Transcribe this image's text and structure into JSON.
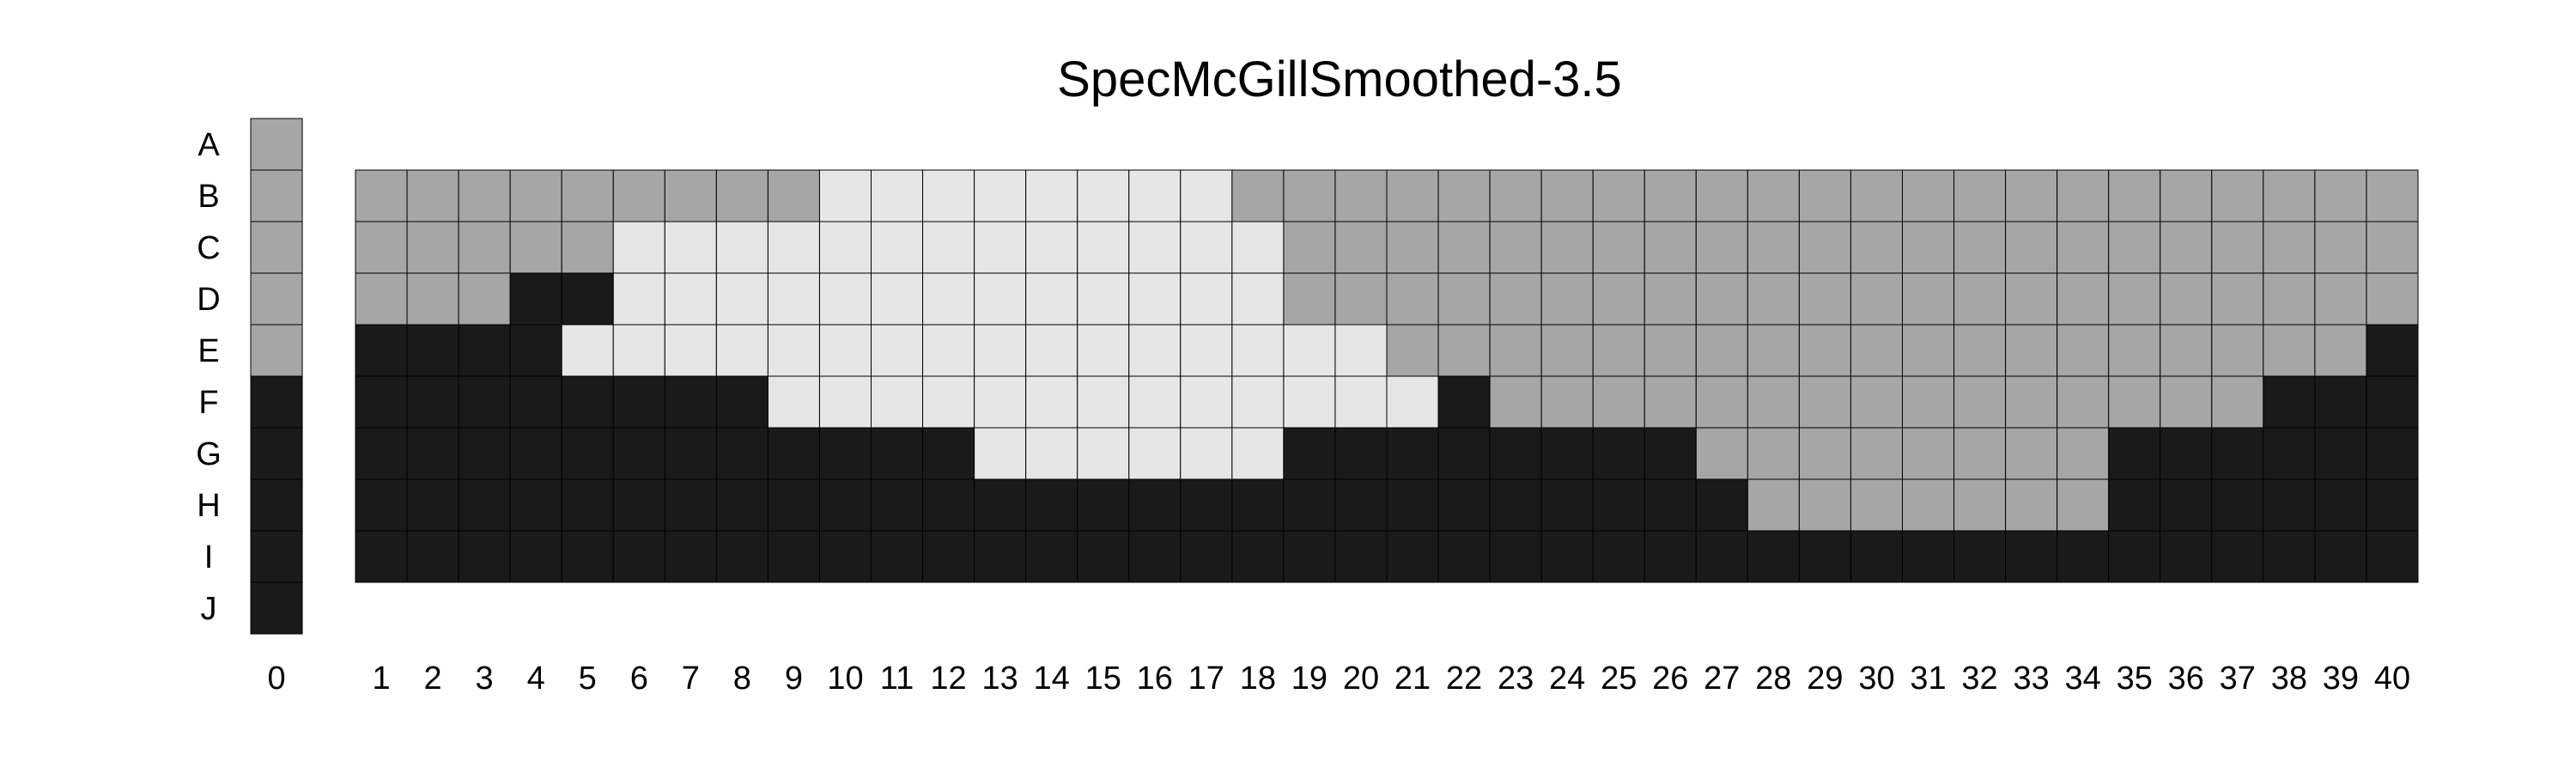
{
  "chart_data": {
    "type": "heatmap",
    "title": "SpecMcGillSmoothed-3.5",
    "xlabel": "",
    "ylabel": "",
    "row_labels": [
      "A",
      "B",
      "C",
      "D",
      "E",
      "F",
      "G",
      "H",
      "I",
      "J"
    ],
    "reference_column": {
      "label": "0",
      "values": [
        "gray",
        "gray",
        "gray",
        "gray",
        "gray",
        "black",
        "black",
        "black",
        "black",
        "black"
      ]
    },
    "columns": [
      "1",
      "2",
      "3",
      "4",
      "5",
      "6",
      "7",
      "8",
      "9",
      "10",
      "11",
      "12",
      "13",
      "14",
      "15",
      "16",
      "17",
      "18",
      "19",
      "20",
      "21",
      "22",
      "23",
      "24",
      "25",
      "26",
      "27",
      "28",
      "29",
      "30",
      "31",
      "32",
      "33",
      "34",
      "35",
      "36",
      "37",
      "38",
      "39",
      "40"
    ],
    "grid_rows": [
      "B",
      "C",
      "D",
      "E",
      "F",
      "G",
      "H",
      "I"
    ],
    "grid": [
      "GGGGGGGGGLLLLLLLLGGGGGGGGGGGGGGGGGGGGGGG",
      "GGGGGLLLLLLLLLLLLLGGGGGGGGGGGGGGGGGGGGGG",
      "GGGKKLLLLLLLLLLLLLGGGGGGGGGGGGGGGGGGGGGG",
      "KKKKLLLLLLLLLLLLLLLLGGGGGGGGGGGGGGGGGGGK",
      "KKKKKKKKLLLLLLLLLLLLLKGGGGGGGGGGGGGGGKKK",
      "KKKKKKKKKKKKLLLLLLKKKKKKKKGGGGGGGGKKKKKK",
      "KKKKKKKKKKKKKKKKKKKKKKKKKKKGGGGGGGKKKKKK",
      "KKKKKKKKKKKKKKKKKKKKKKKKKKKKKKKKKKKKKKKK"
    ],
    "legend": {
      "L": "light",
      "G": "gray",
      "K": "black"
    },
    "colors": {
      "light": "#e6e6e6",
      "gray": "#a6a6a6",
      "black": "#1a1a1a",
      "cell_border": "#000000"
    },
    "grid_lines": true
  }
}
